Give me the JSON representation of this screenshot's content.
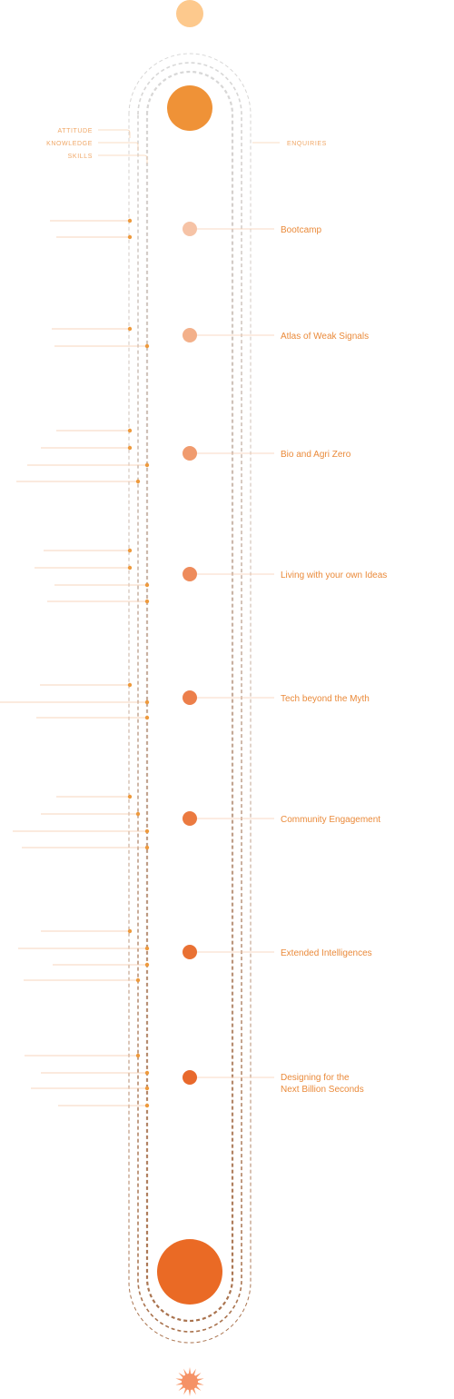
{
  "legend": {
    "attitude": "ATTITUDE",
    "knowledge": "KNOWLEDGE",
    "skills": "SKILLS"
  },
  "enquiries_label": "ENQUIRIES",
  "colors": {
    "start": "#fdc98d",
    "top_node": "#ef9237",
    "bottom_node": "#ea6a25",
    "end_star": "#f79a6d",
    "label": "#ea8a3a",
    "legend": "#f0a766",
    "dots": "#ee9a3d",
    "dash_top": "#d2d2d2",
    "dash_bottom": "#b07a55"
  },
  "modules": [
    {
      "label": "Bootcamp",
      "color": "#f6c3a6"
    },
    {
      "label": "Atlas of Weak Signals",
      "color": "#f3b08a"
    },
    {
      "label": "Bio and Agri Zero",
      "color": "#f09b6e"
    },
    {
      "label": "Living with your own Ideas",
      "color": "#ee8b5b"
    },
    {
      "label": "Tech beyond the Myth",
      "color": "#ec7f4b"
    },
    {
      "label": "Community Engagement",
      "color": "#eb7a40"
    },
    {
      "label": "Extended Intelligences",
      "color": "#e97133"
    },
    {
      "label": "Designing for the\nNext Billion Seconds",
      "label_line1": "Designing for the",
      "label_line2": "Next Billion Seconds",
      "color": "#e8692c"
    }
  ]
}
